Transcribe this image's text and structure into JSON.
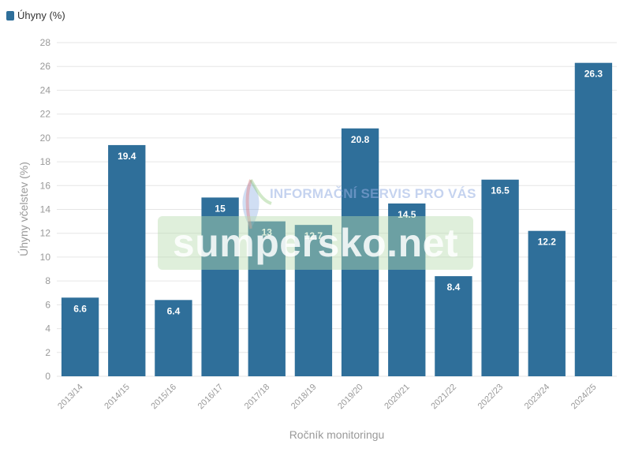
{
  "legend": {
    "label": "Úhyny (%)"
  },
  "watermark": {
    "tagline": "INFORMAČNÍ SERVIS PRO VÁS",
    "brand": "sumpersko.net"
  },
  "colors": {
    "bar": "#2f6f9a",
    "grid": "#e6e6e6",
    "axis_text": "#999999",
    "label_text": "#ffffff"
  },
  "chart_data": {
    "type": "bar",
    "categories": [
      "2013/14",
      "2014/15",
      "2015/16",
      "2016/17",
      "2017/18",
      "2018/19",
      "2019/20",
      "2020/21",
      "2021/22",
      "2022/23",
      "2023/24",
      "2024/25"
    ],
    "series": [
      {
        "name": "Úhyny (%)",
        "values": [
          6.6,
          19.4,
          6.4,
          15,
          13,
          12.7,
          20.8,
          14.5,
          8.4,
          16.5,
          12.2,
          26.3
        ]
      }
    ],
    "value_labels": [
      "6.6",
      "19.4",
      "6.4",
      "15",
      "13",
      "12.7",
      "20.8",
      "14.5",
      "8.4",
      "16.5",
      "12.2",
      "26.3"
    ],
    "xlabel": "Ročník monitoringu",
    "ylabel": "Úhyny včelstev (%)",
    "ylim": [
      0,
      28
    ],
    "yticks": [
      0,
      2,
      4,
      6,
      8,
      10,
      12,
      14,
      16,
      18,
      20,
      22,
      24,
      26,
      28
    ],
    "grid": true,
    "legend_position": "top-left"
  }
}
